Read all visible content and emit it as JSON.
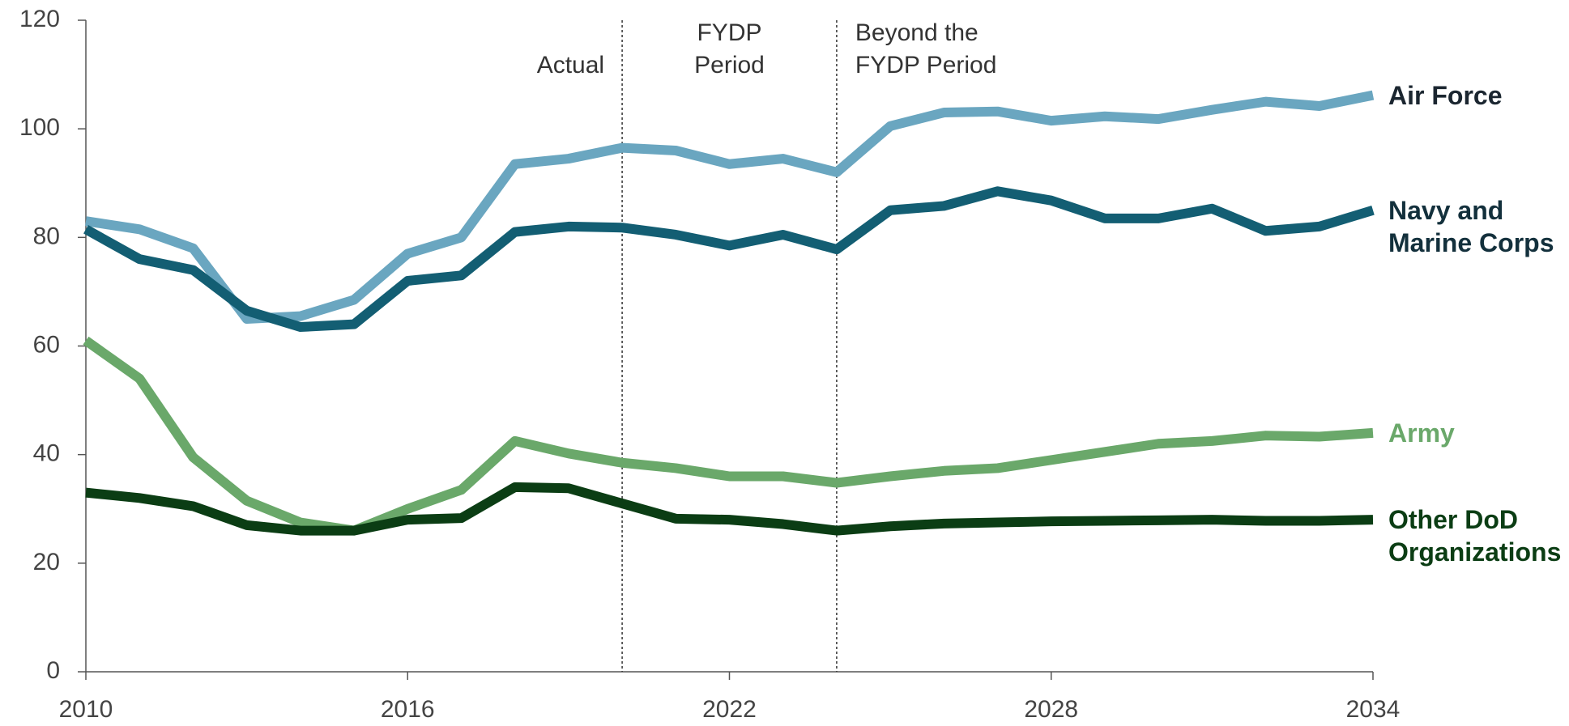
{
  "chart_data": {
    "type": "line",
    "x": [
      2010,
      2011,
      2012,
      2013,
      2014,
      2015,
      2016,
      2017,
      2018,
      2019,
      2020,
      2021,
      2022,
      2023,
      2024,
      2025,
      2026,
      2027,
      2028,
      2029,
      2030,
      2031,
      2032,
      2033,
      2034
    ],
    "series": [
      {
        "name": "Air Force",
        "color": "#6aa6c0",
        "label_color": "#1b2630",
        "values": [
          83,
          81.5,
          78,
          65,
          65.5,
          68.5,
          77,
          80,
          93.5,
          94.5,
          96.5,
          96,
          93.5,
          94.5,
          92,
          100.5,
          103,
          103.2,
          101.5,
          102.3,
          101.8,
          103.5,
          105,
          104.2,
          106.2
        ]
      },
      {
        "name": "Navy and Marine Corps",
        "color": "#135e73",
        "label_color": "#13303c",
        "values": [
          81.5,
          76,
          74,
          66.5,
          63.5,
          64,
          72,
          73,
          81,
          82,
          81.8,
          80.5,
          78.5,
          80.5,
          77.8,
          85,
          85.8,
          88.5,
          86.8,
          83.5,
          83.5,
          85.3,
          81.2,
          82,
          85
        ]
      },
      {
        "name": "Army",
        "color": "#6aa86a",
        "label_color": "#6aa86a",
        "values": [
          61,
          54,
          39.5,
          31.5,
          27.5,
          26,
          30,
          33.5,
          42.5,
          40.2,
          38.5,
          37.5,
          36,
          36,
          34.8,
          36,
          37,
          37.5,
          39,
          40.5,
          42,
          42.5,
          43.5,
          43.3,
          44
        ]
      },
      {
        "name": "Other DoD Organizations",
        "color": "#0b3d14",
        "label_color": "#0b3d14",
        "values": [
          33,
          32,
          30.5,
          27,
          26,
          26,
          28,
          28.3,
          34,
          33.8,
          31,
          28.2,
          28,
          27.2,
          26,
          26.8,
          27.3,
          27.5,
          27.7,
          27.8,
          27.9,
          28,
          27.8,
          27.8,
          28
        ]
      }
    ],
    "xlim": [
      2010,
      2034
    ],
    "xticks": [
      2010,
      2016,
      2022,
      2028,
      2034
    ],
    "ylim": [
      0,
      120
    ],
    "yticks": [
      0,
      20,
      40,
      60,
      80,
      100,
      120
    ],
    "grid": false,
    "dividers": [
      2020,
      2024
    ],
    "annotations": [
      "Actual",
      "FYDP Period",
      "Beyond the FYDP Period"
    ]
  }
}
